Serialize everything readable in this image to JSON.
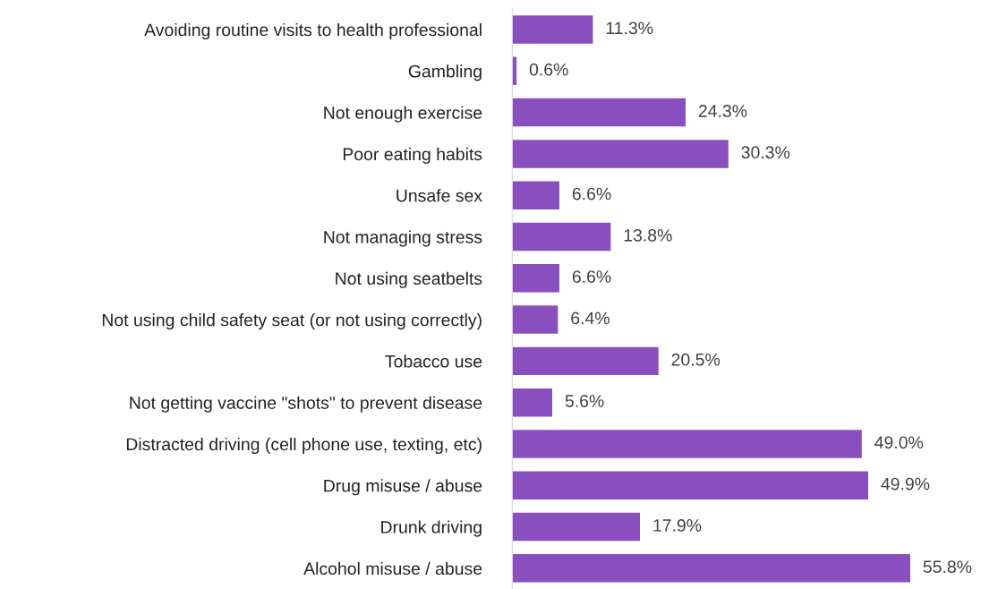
{
  "chart_data": {
    "type": "bar",
    "orientation": "horizontal",
    "color": "#8a4fbf",
    "categories": [
      "Avoiding routine visits to health professional",
      "Gambling",
      "Not enough exercise",
      "Poor eating habits",
      "Unsafe sex",
      "Not managing stress",
      "Not using seatbelts",
      "Not using child safety seat (or not using correctly)",
      "Tobacco use",
      "Not getting vaccine \"shots\" to prevent disease",
      "Distracted driving (cell phone use, texting, etc)",
      "Drug misuse / abuse",
      "Drunk driving",
      "Alcohol misuse / abuse"
    ],
    "values": [
      11.3,
      0.6,
      24.3,
      30.3,
      6.6,
      13.8,
      6.6,
      6.4,
      20.5,
      5.6,
      49.0,
      49.9,
      17.9,
      55.8
    ],
    "value_labels": [
      "11.3%",
      "0.6%",
      "24.3%",
      "30.3%",
      "6.6%",
      "13.8%",
      "6.6%",
      "6.4%",
      "20.5%",
      "5.6%",
      "49.0%",
      "49.9%",
      "17.9%",
      "55.8%"
    ],
    "grid": false,
    "legend": false
  }
}
